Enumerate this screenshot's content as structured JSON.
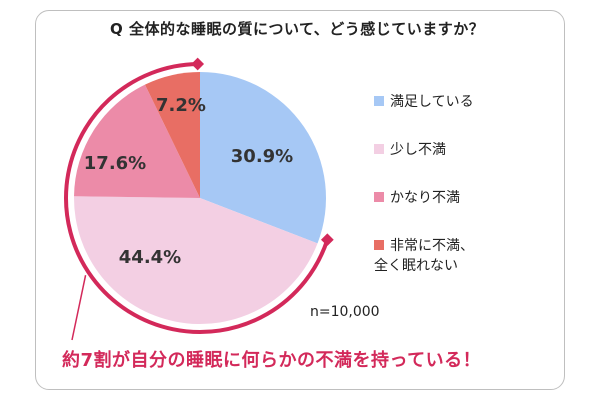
{
  "title": "Q 全体的な睡眠の質について、どう感じていますか？",
  "sample": "n=10,000",
  "callout": "約7割が自分の睡眠に何らかの不満を持っている！",
  "chart_data": {
    "type": "pie",
    "title": "Q 全体的な睡眠の質について、どう感じていますか？",
    "slices": [
      {
        "label": "満足している",
        "value": 30.9,
        "display": "30.9%",
        "color": "#a6c8f5"
      },
      {
        "label": "少し不満",
        "value": 44.4,
        "display": "44.4%",
        "color": "#f3cfe3"
      },
      {
        "label": "かなり不満",
        "value": 17.6,
        "display": "17.6%",
        "color": "#ec8ba8"
      },
      {
        "label": "非常に不満、全く眠れない",
        "value": 7.2,
        "display": "7.2%",
        "color": "#e86e64"
      }
    ],
    "legend": [
      {
        "lines": [
          "満足している"
        ],
        "color": "#a6c8f5"
      },
      {
        "lines": [
          "少し不満"
        ],
        "color": "#f3cfe3"
      },
      {
        "lines": [
          "かなり不満"
        ],
        "color": "#ec8ba8"
      },
      {
        "lines": [
          "非常に不満、",
          "全く眠れない"
        ],
        "color": "#e86e64"
      }
    ],
    "legend_position": "right",
    "highlight_arc_color": "#d3295a"
  }
}
